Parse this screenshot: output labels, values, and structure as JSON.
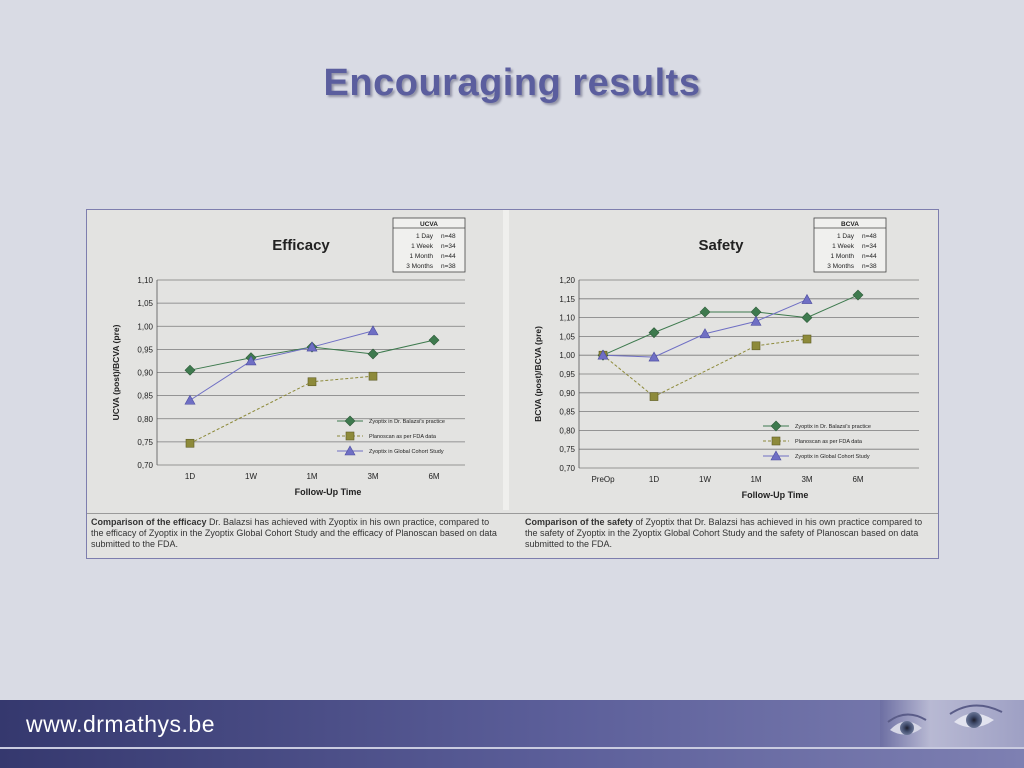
{
  "slide": {
    "title": "Encouraging results"
  },
  "footer": {
    "url": "www.drmathys.be"
  },
  "colors": {
    "title": "#5b5e9e",
    "series1": "#3e7a4e",
    "series2": "#8d8a3a",
    "series3": "#6f6fc4",
    "footer": "#4a4d87"
  },
  "chart_data": [
    {
      "type": "line",
      "title": "Efficacy",
      "xlabel": "Follow-Up Time",
      "ylabel": "UCVA (post)/BCVA (pre)",
      "categories": [
        "1D",
        "1W",
        "1M",
        "3M",
        "6M"
      ],
      "y_ticks": [
        "1,10",
        "1,05",
        "1,00",
        "0,95",
        "0,90",
        "0,85",
        "0,80",
        "0,75",
        "0,70"
      ],
      "ylim": [
        0.7,
        1.1
      ],
      "series": [
        {
          "name": "Zyoptix in Dr. Balazsi's practice",
          "marker": "diamond",
          "values": [
            0.905,
            0.932,
            0.955,
            0.94,
            0.97
          ]
        },
        {
          "name": "Planoscan as per FDA data",
          "marker": "square",
          "dashed": true,
          "values": [
            0.747,
            null,
            0.88,
            0.892,
            null
          ]
        },
        {
          "name": "Zyoptix in Global Cohort Study",
          "marker": "triangle",
          "values": [
            0.84,
            0.925,
            0.955,
            0.99,
            null
          ]
        }
      ],
      "table": {
        "header": "UCVA",
        "rows": [
          {
            "label": "1 Day",
            "n": "n=48"
          },
          {
            "label": "1 Week",
            "n": "n=34"
          },
          {
            "label": "1 Month",
            "n": "n=44"
          },
          {
            "label": "3 Months",
            "n": "n=38"
          }
        ]
      },
      "caption_bold": "Comparison of the efficacy",
      "caption_rest": " Dr. Balazsi has achieved with Zyoptix in his own practice, compared to the efficacy of Zyoptix in the Zyoptix Global Cohort Study and the efficacy of Planoscan based on data submitted to the FDA."
    },
    {
      "type": "line",
      "title": "Safety",
      "xlabel": "Follow-Up Time",
      "ylabel": "BCVA (post)/BCVA (pre)",
      "categories": [
        "PreOp",
        "1D",
        "1W",
        "1M",
        "3M",
        "6M"
      ],
      "y_ticks": [
        "1,20",
        "1,15",
        "1,10",
        "1,05",
        "1,00",
        "0,95",
        "0,90",
        "0,85",
        "0,80",
        "0,75",
        "0,70"
      ],
      "ylim": [
        0.7,
        1.2
      ],
      "series": [
        {
          "name": "Zyoptix in Dr. Balazsi's practice",
          "marker": "diamond",
          "values": [
            1.0,
            1.06,
            1.115,
            1.115,
            1.1,
            1.16
          ]
        },
        {
          "name": "Planoscan as per FDA data",
          "marker": "square",
          "dashed": true,
          "values": [
            1.0,
            0.89,
            null,
            1.025,
            1.043,
            null
          ]
        },
        {
          "name": "Zyoptix in Global Cohort Study",
          "marker": "triangle",
          "values": [
            1.0,
            0.995,
            1.057,
            1.09,
            1.148,
            null
          ]
        }
      ],
      "table": {
        "header": "BCVA",
        "rows": [
          {
            "label": "1 Day",
            "n": "n=48"
          },
          {
            "label": "1 Week",
            "n": "n=34"
          },
          {
            "label": "1 Month",
            "n": "n=44"
          },
          {
            "label": "3 Months",
            "n": "n=38"
          }
        ]
      },
      "caption_bold": "Comparison of the safety",
      "caption_rest": " of Zyoptix that Dr. Balazsi has achieved in his own practice compared to the safety of Zyoptix in the Zyoptix Global Cohort Study and the safety of Planoscan based on data submitted to the FDA."
    }
  ]
}
